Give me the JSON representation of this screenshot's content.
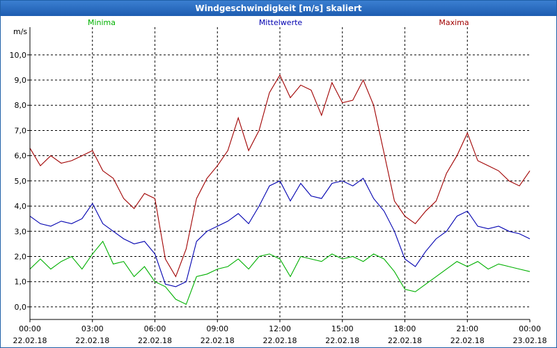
{
  "window": {
    "title": "Windgeschwindigkeit [m/s] skaliert"
  },
  "chart_data": {
    "type": "line",
    "ylabel": "m/s",
    "ylim": [
      -0.5,
      11.1
    ],
    "yticks": [
      "0,0",
      "1,0",
      "2,0",
      "3,0",
      "4,0",
      "5,0",
      "6,0",
      "7,0",
      "8,0",
      "9,0",
      "10,0"
    ],
    "xticks": [
      {
        "time": "00:00",
        "date": "22.02.18"
      },
      {
        "time": "03:00",
        "date": "22.02.18"
      },
      {
        "time": "06:00",
        "date": "22.02.18"
      },
      {
        "time": "09:00",
        "date": "22.02.18"
      },
      {
        "time": "12:00",
        "date": "22.02.18"
      },
      {
        "time": "15:00",
        "date": "22.02.18"
      },
      {
        "time": "18:00",
        "date": "22.02.18"
      },
      {
        "time": "21:00",
        "date": "22.02.18"
      },
      {
        "time": "00:00",
        "date": "23.02.18"
      }
    ],
    "grid": true,
    "legend_position": "top",
    "series": [
      {
        "name": "Minima",
        "color": "#00b000",
        "x": [
          0.0,
          0.5,
          1.0,
          1.5,
          2.0,
          2.5,
          3.0,
          3.5,
          4.0,
          4.5,
          5.0,
          5.5,
          6.0,
          6.5,
          7.0,
          7.5,
          8.0,
          8.5,
          9.0,
          9.5,
          10.0,
          10.5,
          11.0,
          11.5,
          12.0,
          12.5,
          13.0,
          13.5,
          14.0,
          14.5,
          15.0,
          15.5,
          16.0,
          16.5,
          17.0,
          17.5,
          18.0,
          18.5,
          19.0,
          19.5,
          20.0,
          20.5,
          21.0,
          21.5,
          22.0,
          22.5,
          23.0,
          23.5,
          24.0
        ],
        "y": [
          1.5,
          1.9,
          1.5,
          1.8,
          2.0,
          1.5,
          2.1,
          2.6,
          1.7,
          1.8,
          1.2,
          1.6,
          1.0,
          0.8,
          0.3,
          0.1,
          1.2,
          1.3,
          1.5,
          1.6,
          1.9,
          1.5,
          2.0,
          2.1,
          1.9,
          1.2,
          2.0,
          1.9,
          1.8,
          2.1,
          1.9,
          2.0,
          1.8,
          2.1,
          1.9,
          1.4,
          0.7,
          0.6,
          0.9,
          1.2,
          1.5,
          1.8,
          1.6,
          1.8,
          1.5,
          1.7,
          1.6,
          1.5,
          1.4
        ]
      },
      {
        "name": "Mittelwerte",
        "color": "#0000b0",
        "x": [
          0.0,
          0.5,
          1.0,
          1.5,
          2.0,
          2.5,
          3.0,
          3.5,
          4.0,
          4.5,
          5.0,
          5.5,
          6.0,
          6.5,
          7.0,
          7.5,
          8.0,
          8.5,
          9.0,
          9.5,
          10.0,
          10.5,
          11.0,
          11.5,
          12.0,
          12.5,
          13.0,
          13.5,
          14.0,
          14.5,
          15.0,
          15.5,
          16.0,
          16.5,
          17.0,
          17.5,
          18.0,
          18.5,
          19.0,
          19.5,
          20.0,
          20.5,
          21.0,
          21.5,
          22.0,
          22.5,
          23.0,
          23.5,
          24.0
        ],
        "y": [
          3.6,
          3.3,
          3.2,
          3.4,
          3.3,
          3.5,
          4.1,
          3.3,
          3.0,
          2.7,
          2.5,
          2.6,
          2.1,
          0.9,
          0.8,
          1.0,
          2.6,
          3.0,
          3.2,
          3.4,
          3.7,
          3.3,
          4.0,
          4.8,
          5.0,
          4.2,
          4.9,
          4.4,
          4.3,
          4.9,
          5.0,
          4.8,
          5.1,
          4.3,
          3.8,
          3.0,
          1.9,
          1.6,
          2.2,
          2.7,
          3.0,
          3.6,
          3.8,
          3.2,
          3.1,
          3.2,
          3.0,
          2.9,
          2.7
        ]
      },
      {
        "name": "Maxima",
        "color": "#a00000",
        "x": [
          0.0,
          0.5,
          1.0,
          1.5,
          2.0,
          2.5,
          3.0,
          3.5,
          4.0,
          4.5,
          5.0,
          5.5,
          6.0,
          6.5,
          7.0,
          7.5,
          8.0,
          8.5,
          9.0,
          9.5,
          10.0,
          10.5,
          11.0,
          11.5,
          12.0,
          12.5,
          13.0,
          13.5,
          14.0,
          14.5,
          15.0,
          15.5,
          16.0,
          16.5,
          17.0,
          17.5,
          18.0,
          18.5,
          19.0,
          19.5,
          20.0,
          20.5,
          21.0,
          21.5,
          22.0,
          22.5,
          23.0,
          23.5,
          24.0
        ],
        "y": [
          6.3,
          5.6,
          6.0,
          5.7,
          5.8,
          6.0,
          6.2,
          5.4,
          5.1,
          4.3,
          3.9,
          4.5,
          4.3,
          1.9,
          1.2,
          2.3,
          4.3,
          5.1,
          5.6,
          6.2,
          7.5,
          6.2,
          7.0,
          8.5,
          9.2,
          8.3,
          8.8,
          8.6,
          7.6,
          8.9,
          8.1,
          8.2,
          9.0,
          8.0,
          6.1,
          4.2,
          3.6,
          3.3,
          3.8,
          4.2,
          5.3,
          6.0,
          6.9,
          5.8,
          5.6,
          5.4,
          5.0,
          4.8,
          5.4
        ]
      }
    ]
  }
}
